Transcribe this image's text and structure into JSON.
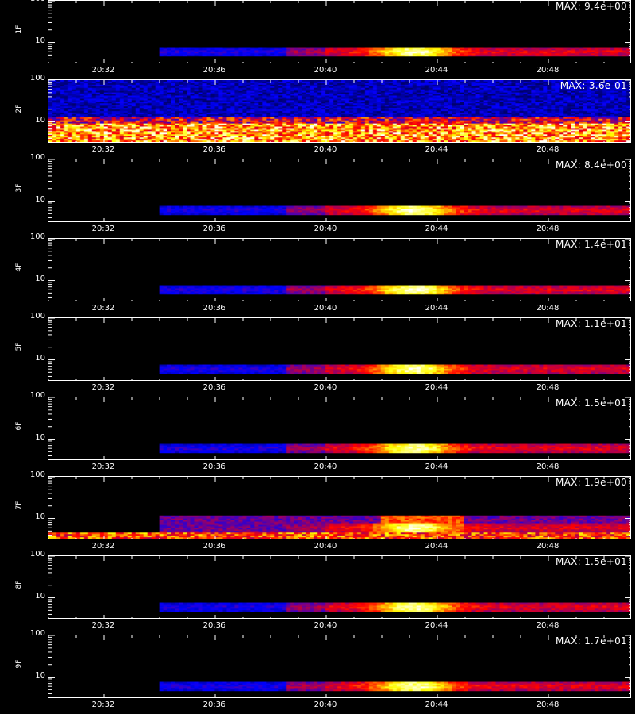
{
  "chart_data": {
    "type": "heatmap",
    "x_time_range": [
      "20:30",
      "20:51"
    ],
    "y_scale": "log",
    "ylim": [
      3,
      100
    ],
    "y_ticks": [
      "100",
      "10"
    ],
    "x_ticks": [
      "20:32",
      "20:36",
      "20:40",
      "20:44",
      "20:48"
    ],
    "colormap": [
      "#000000",
      "#0000ff",
      "#ff0000",
      "#ffff00",
      "#ffffff"
    ],
    "panels": [
      {
        "channel": "1F",
        "max_label": "MAX: 9.4e+00",
        "pattern": "event",
        "max_value": 9.4
      },
      {
        "channel": "2F",
        "max_label": "MAX: 3.6e-01",
        "pattern": "noise",
        "max_value": 0.36
      },
      {
        "channel": "3F",
        "max_label": "MAX: 8.4e+00",
        "pattern": "event",
        "max_value": 8.4
      },
      {
        "channel": "4F",
        "max_label": "MAX: 1.4e+01",
        "pattern": "event",
        "max_value": 14
      },
      {
        "channel": "5F",
        "max_label": "MAX: 1.1e+01",
        "pattern": "event",
        "max_value": 11
      },
      {
        "channel": "6F",
        "max_label": "MAX: 1.5e+01",
        "pattern": "event",
        "max_value": 15
      },
      {
        "channel": "7F",
        "max_label": "MAX: 1.9e+00",
        "pattern": "event_noisy",
        "max_value": 1.9
      },
      {
        "channel": "8F",
        "max_label": "MAX: 1.5e+01",
        "pattern": "event",
        "max_value": 15
      },
      {
        "channel": "9F",
        "max_label": "MAX: 1.7e+01",
        "pattern": "event",
        "max_value": 17
      }
    ]
  }
}
